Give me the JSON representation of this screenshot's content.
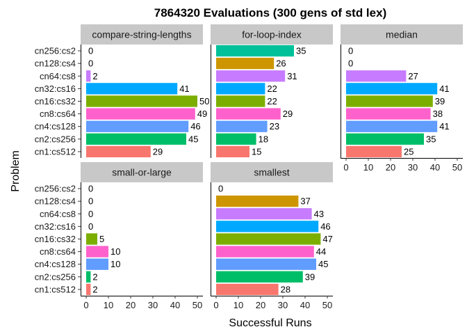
{
  "chart_data": {
    "type": "bar",
    "orientation": "horizontal",
    "title": "7864320 Evaluations (300 gens of std lex)",
    "xlabel": "Successful Runs",
    "ylabel": "Problem",
    "xlim": [
      0,
      50
    ],
    "xticks": [
      0,
      10,
      20,
      30,
      40,
      50
    ],
    "grid": false,
    "legend": "none",
    "categories": [
      "cn256:cs2",
      "cn128:cs4",
      "cn64:cs8",
      "cn32:cs16",
      "cn16:cs32",
      "cn8:cs64",
      "cn4:cs128",
      "cn2:cs256",
      "cn1:cs512"
    ],
    "category_colors": [
      "#00BFC4",
      "#CD9600",
      "#C77CFF",
      "#00A9FF",
      "#7CAE00",
      "#FF61CC",
      "#619CFF",
      "#00BE67",
      "#F8766D"
    ],
    "color_overrides": [
      {
        "category": "cn256:cs2",
        "panel": "for-loop-index",
        "color": "#00C19A"
      }
    ],
    "panels": [
      {
        "name": "compare-string-lengths",
        "values": [
          0,
          0,
          2,
          41,
          50,
          49,
          46,
          45,
          29
        ]
      },
      {
        "name": "for-loop-index",
        "values": [
          35,
          26,
          31,
          22,
          22,
          29,
          23,
          18,
          15
        ]
      },
      {
        "name": "median",
        "values": [
          0,
          0,
          27,
          41,
          39,
          38,
          41,
          35,
          25
        ]
      },
      {
        "name": "small-or-large",
        "values": [
          0,
          0,
          0,
          0,
          5,
          10,
          10,
          2,
          2
        ]
      },
      {
        "name": "smallest",
        "values": [
          0,
          37,
          43,
          46,
          47,
          44,
          45,
          39,
          28
        ]
      }
    ]
  }
}
